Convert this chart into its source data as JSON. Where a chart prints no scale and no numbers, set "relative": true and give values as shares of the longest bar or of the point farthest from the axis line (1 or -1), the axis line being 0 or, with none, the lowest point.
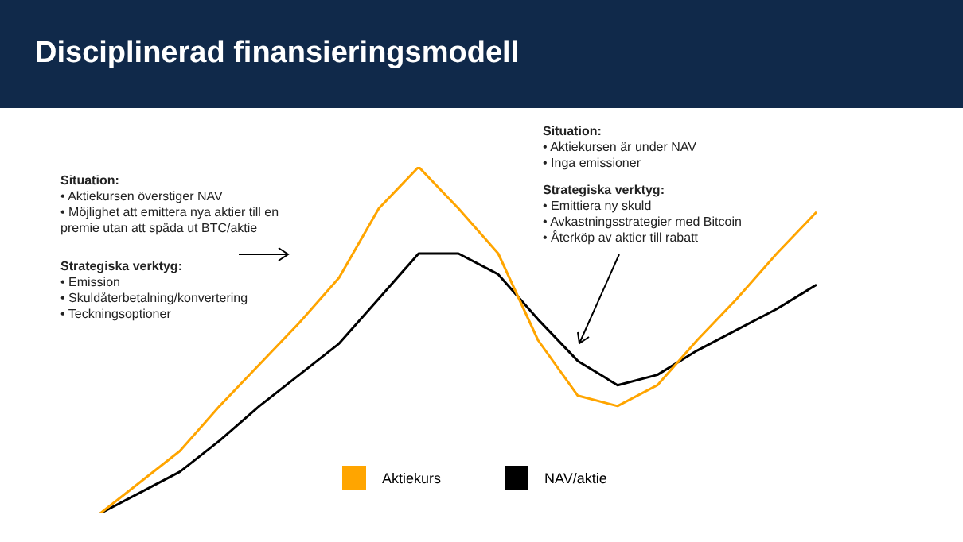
{
  "chart_data": {
    "type": "line",
    "title": "Disciplinerad finansieringsmodell",
    "relative": true,
    "legend": "bottom",
    "marker": "none",
    "categories": [
      null,
      null,
      null,
      null,
      null,
      null,
      null,
      null,
      null,
      null,
      null,
      null,
      null,
      null,
      null,
      null,
      null,
      null,
      null
    ],
    "series": [
      {
        "name": "Aktiekurs",
        "color": "#ffa500",
        "values": [
          0,
          0.09,
          0.18,
          0.31,
          0.43,
          0.55,
          0.68,
          0.88,
          1,
          0.88,
          0.75,
          0.5,
          0.34,
          0.31,
          0.37,
          0.5,
          0.62,
          0.75,
          0.87
        ]
      },
      {
        "name": "NAV/aktie",
        "color": "#000000",
        "values": [
          0,
          0.06,
          0.12,
          0.21,
          0.31,
          0.4,
          0.49,
          0.62,
          0.75,
          0.75,
          0.69,
          0.56,
          0.44,
          0.37,
          0.4,
          0.47,
          0.53,
          0.59,
          0.66
        ]
      }
    ],
    "annotations": [
      "Situation:\n• Aktiekursen överstiger NAV\n• Möjlighet att emittera nya aktier till en\npremie utan att späda ut BTC/aktie",
      "Strategiska verktyg:\n• Emission\n• Skuldåterbetalning/konvertering\n• Teckningsoptioner",
      "Situation:\n• Aktiekursen är under NAV\n• Inga emissioner",
      "Strategiska verktyg:\n• Emittiera ny skuld\n• Avkastningsstrategier med Bitcoin\n• Återköp av aktier till rabatt"
    ]
  }
}
